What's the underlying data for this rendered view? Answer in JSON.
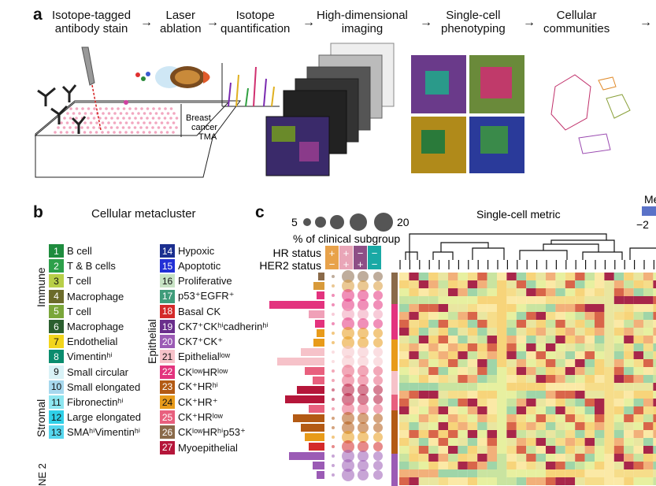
{
  "panel_a": {
    "letter": "a",
    "steps": [
      {
        "line1": "Isotope-tagged",
        "line2": "antibody stain"
      },
      {
        "line1": "Laser",
        "line2": "ablation"
      },
      {
        "line1": "Isotope",
        "line2": "quantification"
      },
      {
        "line1": "High-dimensional",
        "line2": "imaging"
      },
      {
        "line1": "Single-cell",
        "line2": "phenotyping"
      },
      {
        "line1": "Cellular",
        "line2": "communities"
      }
    ],
    "arrow": "→",
    "tma_label": [
      "Breast",
      "cancer",
      "TMA"
    ]
  },
  "panel_b": {
    "letter": "b",
    "title": "Cellular metacluster",
    "group_labels": {
      "immune": "Immune",
      "stromal": "Stromal",
      "epithelial": "Epithelial",
      "bottom_fragment": "NE 2"
    },
    "left_items": [
      {
        "n": "1",
        "label": "B cell",
        "color": "#1e8c3e"
      },
      {
        "n": "2",
        "label": "T & B cells",
        "color": "#2da04a"
      },
      {
        "n": "3",
        "label": "T cell",
        "color": "#b8cf48"
      },
      {
        "n": "4",
        "label": "Macrophage",
        "color": "#6b6b2a"
      },
      {
        "n": "5",
        "label": "T cell",
        "color": "#7aa63a"
      },
      {
        "n": "6",
        "label": "Macrophage",
        "color": "#2b5f2f"
      },
      {
        "n": "7",
        "label": "Endothelial",
        "color": "#f2d51c"
      },
      {
        "n": "8",
        "label": "Vimentinʰⁱ",
        "color": "#0a8c6e"
      },
      {
        "n": "9",
        "label": "Small circular",
        "color": "#d9f2f7"
      },
      {
        "n": "10",
        "label": "Small elongated",
        "color": "#a7d8ee"
      },
      {
        "n": "11",
        "label": "Fibronectinʰⁱ",
        "color": "#8de6f0"
      },
      {
        "n": "12",
        "label": "Large elongated",
        "color": "#2fd0e8"
      },
      {
        "n": "13",
        "label": "SMAʰⁱVimentinʰⁱ",
        "color": "#56d6ee"
      }
    ],
    "right_items": [
      {
        "n": "14",
        "label": "Hypoxic",
        "color": "#1b2f8f"
      },
      {
        "n": "15",
        "label": "Apoptotic",
        "color": "#2230d6"
      },
      {
        "n": "16",
        "label": "Proliferative",
        "color": "#c7e3c4"
      },
      {
        "n": "17",
        "label": "p53⁺EGFR⁺",
        "color": "#3f9c7a"
      },
      {
        "n": "18",
        "label": "Basal CK",
        "color": "#d42a2a"
      },
      {
        "n": "19",
        "label": "CK7⁺CKʰⁱcadherinʰⁱ",
        "color": "#6a2e8c"
      },
      {
        "n": "20",
        "label": "CK7⁺CK⁺",
        "color": "#9b5bb5"
      },
      {
        "n": "21",
        "label": "Epithelialˡᵒʷ",
        "color": "#f6c2c9"
      },
      {
        "n": "22",
        "label": "CKˡᵒʷHRˡᵒʷ",
        "color": "#e3337e"
      },
      {
        "n": "23",
        "label": "CK⁺HRʰⁱ",
        "color": "#b35a14"
      },
      {
        "n": "24",
        "label": "CK⁺HR⁺",
        "color": "#e89b1a"
      },
      {
        "n": "25",
        "label": "CK⁺HRˡᵒʷ",
        "color": "#e8607e"
      },
      {
        "n": "26",
        "label": "CKˡᵒʷHRʰⁱp53⁺",
        "color": "#8a6a4a"
      },
      {
        "n": "27",
        "label": "Myoepithelial",
        "color": "#b5163a"
      }
    ]
  },
  "panel_c": {
    "letter": "c",
    "size_legend": {
      "min": "5",
      "max": "20",
      "caption": "% of clinical subgroup"
    },
    "hr_status_label": "HR status",
    "her2_status_label": "HER2 status",
    "hr_signs": [
      "+",
      "+",
      "−",
      "−"
    ],
    "her2_signs": [
      "−",
      "+",
      "+",
      "−"
    ],
    "status_colors": [
      "#e8a24a",
      "#e9a6b8",
      "#8e4f86",
      "#1aa9a5"
    ],
    "dendro_title": "Single-cell metric",
    "colorbar_label_fragment": "Me",
    "colorbar_tick": "−2"
  }
}
